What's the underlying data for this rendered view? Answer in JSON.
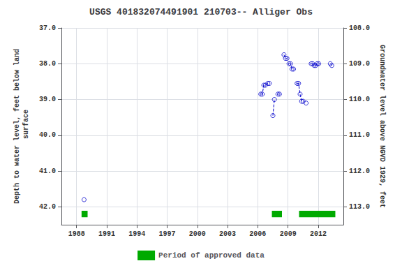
{
  "chart_data": {
    "type": "scatter",
    "title": "USGS 401832074491901 210703-- Alliger Obs",
    "ylabel": "Depth to water level, feet below land\n surface",
    "y2label": "Groundwater level above NGVD 1929, feet",
    "x": [
      1988.75,
      2006.3,
      2006.45,
      2006.6,
      2006.75,
      2007.0,
      2007.15,
      2007.5,
      2007.65,
      2008.0,
      2008.15,
      2008.6,
      2008.75,
      2008.9,
      2009.1,
      2009.25,
      2009.4,
      2009.55,
      2009.9,
      2010.05,
      2010.2,
      2010.35,
      2010.5,
      2010.8,
      2011.3,
      2011.45,
      2011.6,
      2011.75,
      2011.9,
      2012.05,
      2013.2,
      2013.35
    ],
    "values": [
      41.8,
      38.85,
      38.85,
      38.6,
      38.6,
      38.55,
      38.55,
      39.45,
      39.0,
      38.85,
      38.85,
      37.75,
      37.85,
      37.85,
      38.0,
      38.0,
      38.15,
      38.15,
      38.55,
      38.55,
      38.85,
      39.05,
      39.05,
      39.1,
      38.0,
      38.0,
      38.05,
      38.05,
      38.0,
      38.0,
      38.0,
      38.05
    ],
    "color": "#0000cc",
    "marker": "circle",
    "line_style": "dashed",
    "line_groups": [
      [
        2006.3,
        2006.45,
        2006.6,
        2006.75,
        2007.0,
        2007.15
      ],
      [
        2007.5,
        2007.65
      ],
      [
        2008.0,
        2008.15
      ],
      [
        2008.6,
        2008.75,
        2008.9
      ],
      [
        2009.1,
        2009.25,
        2009.4,
        2009.55
      ],
      [
        2009.9,
        2010.05,
        2010.2,
        2010.35,
        2010.5
      ],
      [
        2010.8
      ],
      [
        2011.3,
        2011.45,
        2011.6,
        2011.75,
        2011.9,
        2012.05
      ],
      [
        2013.2,
        2013.35
      ]
    ],
    "xlim": [
      1986.5,
      2014.5
    ],
    "xticks": [
      1988,
      1991,
      1994,
      1997,
      2000,
      2003,
      2006,
      2009,
      2012
    ],
    "ylim": [
      42.5,
      37.0
    ],
    "yticks": [
      {
        "value": 37.0,
        "label": "37.0"
      },
      {
        "value": 38.0,
        "label": "38.0"
      },
      {
        "value": 39.0,
        "label": "39.0"
      },
      {
        "value": 40.0,
        "label": "40.0"
      },
      {
        "value": 41.0,
        "label": "41.0"
      },
      {
        "value": 42.0,
        "label": "42.0"
      }
    ],
    "y2lim": [
      113.5,
      108.0
    ],
    "y2ticks": [
      {
        "value": 113.0,
        "label": "113.0"
      },
      {
        "value": 112.0,
        "label": "112.0"
      },
      {
        "value": 111.0,
        "label": "111.0"
      },
      {
        "value": 110.0,
        "label": "110.0"
      },
      {
        "value": 109.0,
        "label": "109.0"
      },
      {
        "value": 108.0,
        "label": "108.0"
      }
    ],
    "grid": true,
    "legend": "bottom",
    "approved": {
      "name": "Period of approved data",
      "color": "#00aa00",
      "periods": [
        [
          1988.5,
          1989.1
        ],
        [
          2007.4,
          2008.4
        ],
        [
          2010.1,
          2013.7
        ]
      ],
      "y": 42.2,
      "height": 0.18
    }
  }
}
